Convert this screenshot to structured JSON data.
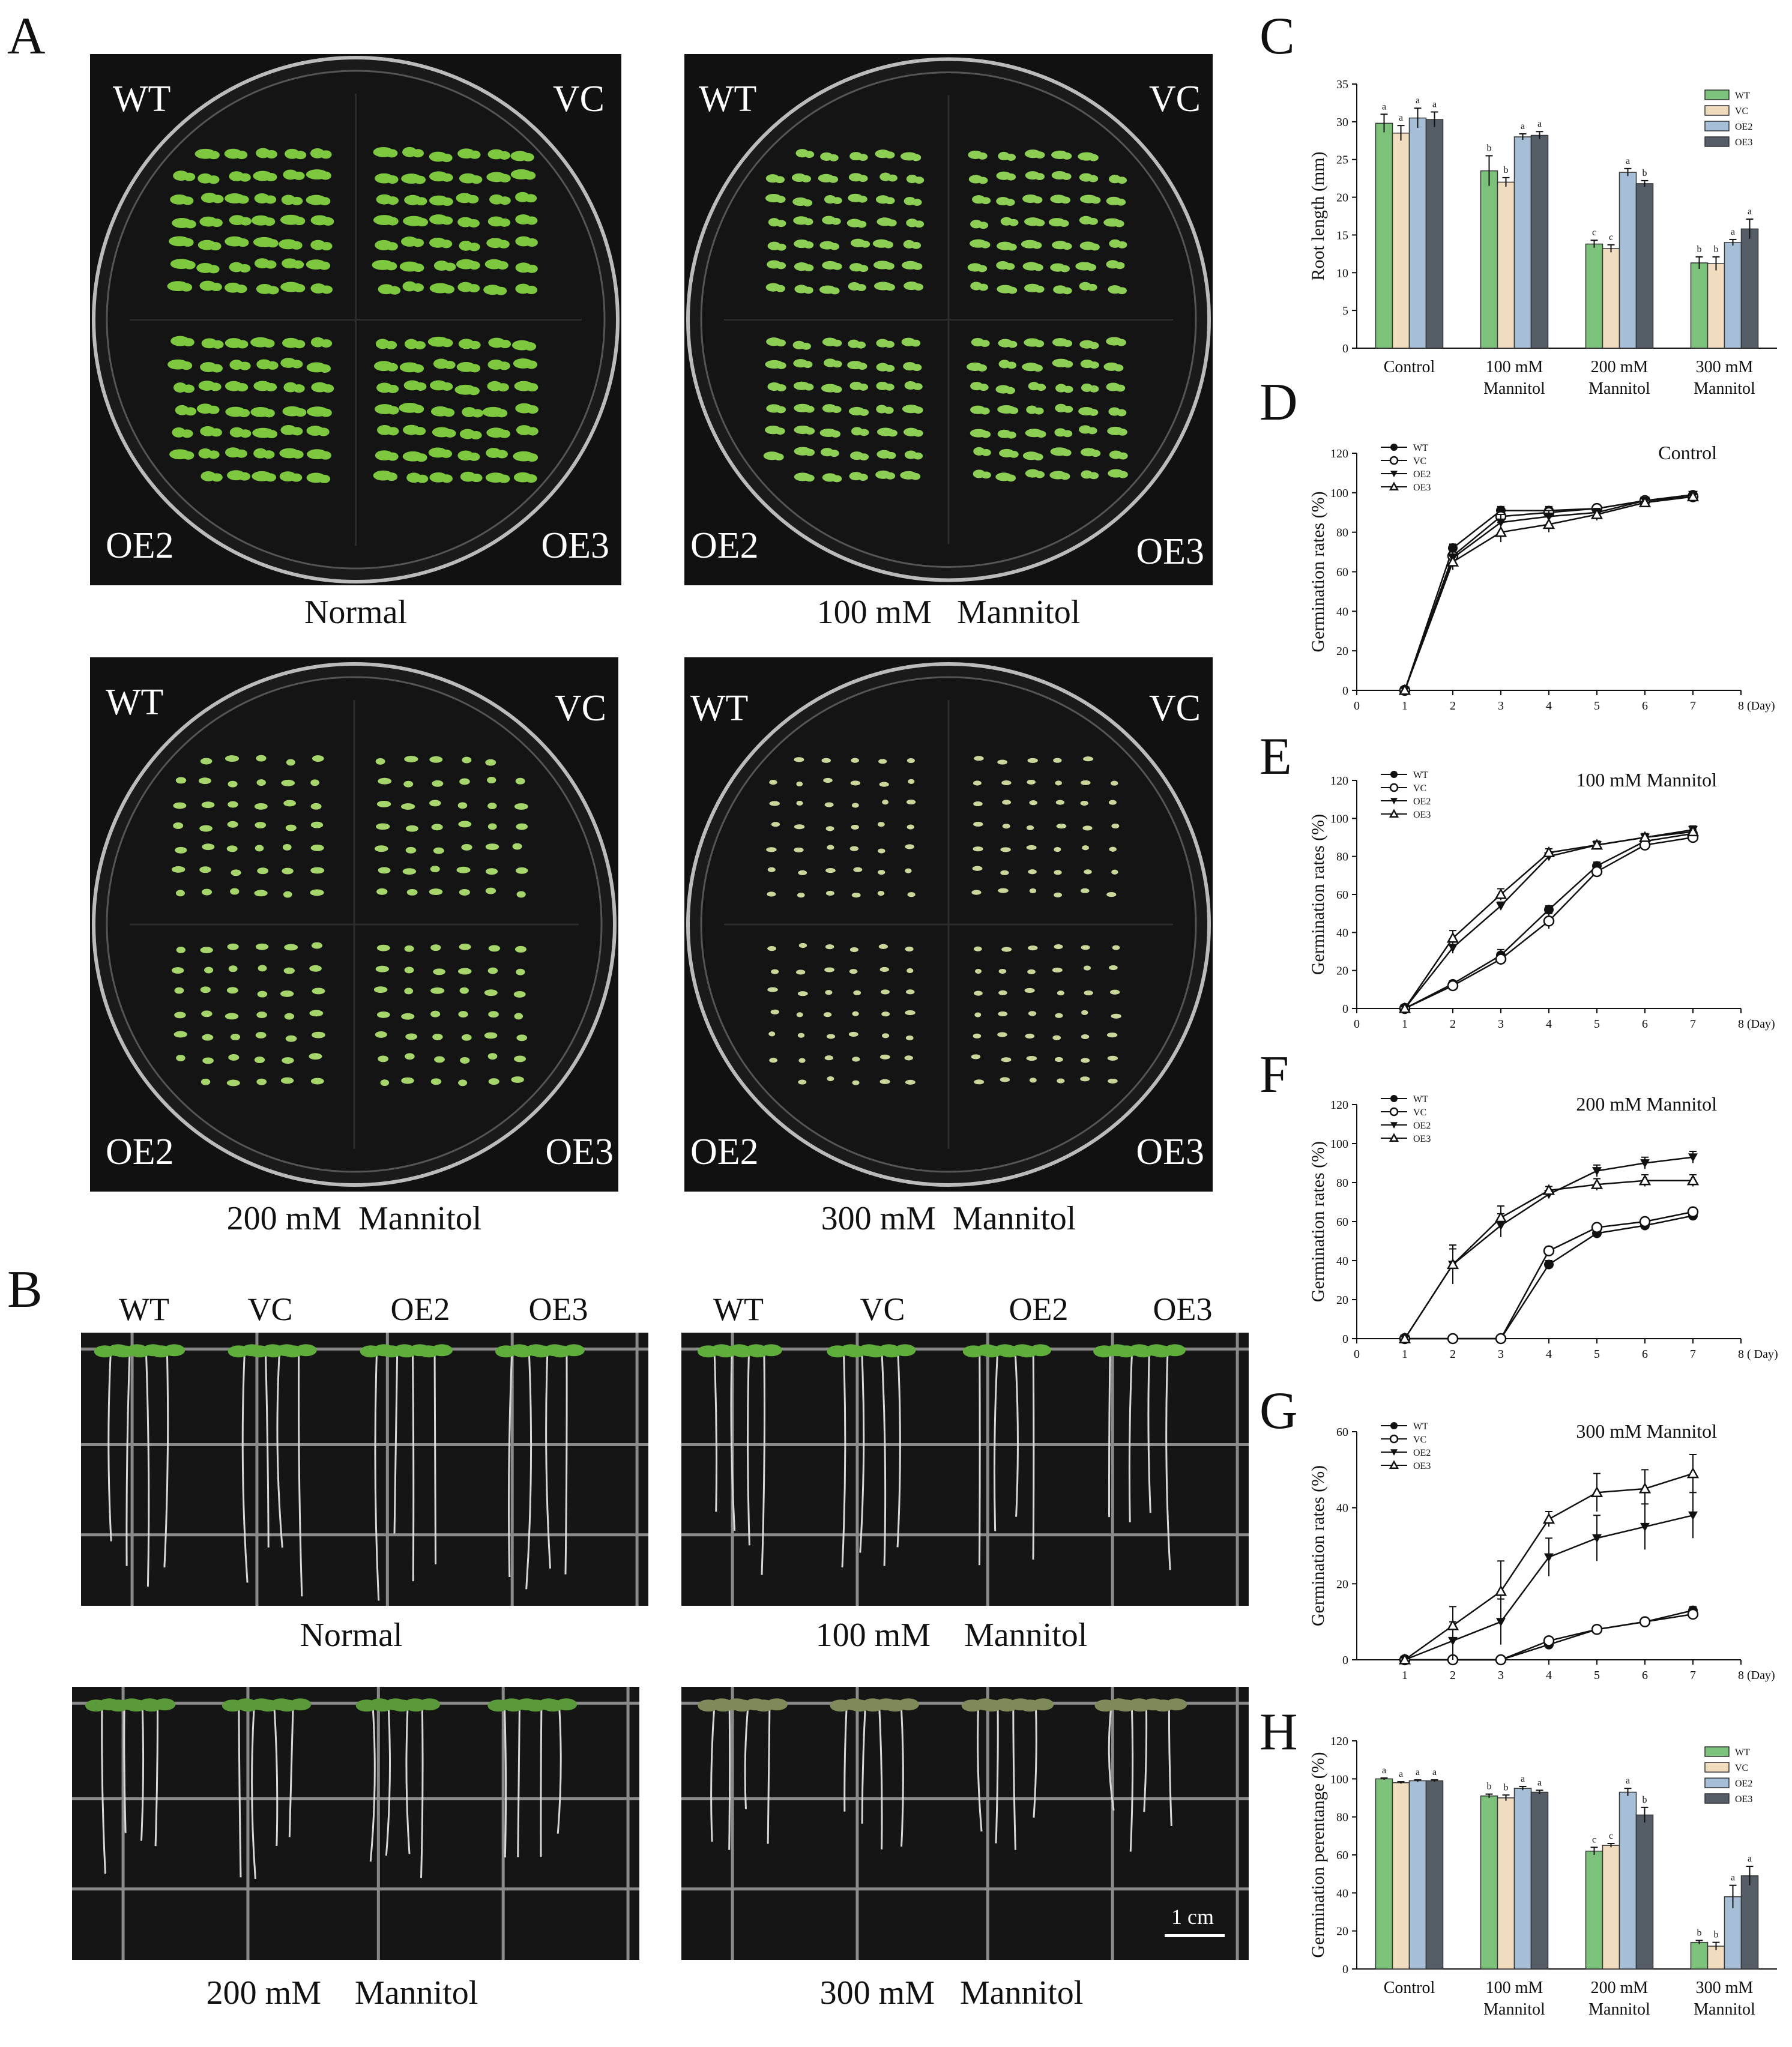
{
  "panel_letters": {
    "A": "A",
    "B": "B",
    "C": "C",
    "D": "D",
    "E": "E",
    "F": "F",
    "G": "G",
    "H": "H"
  },
  "genotypes": [
    "WT",
    "VC",
    "OE2",
    "OE3"
  ],
  "panel_a": {
    "plates": [
      {
        "caption": "Normal",
        "tl": "WT",
        "tr": "VC",
        "bl": "OE2",
        "br": "OE3",
        "seedling_density": 1.0,
        "green": "#7ec840"
      },
      {
        "caption": "100 mM   Mannitol",
        "tl": "WT",
        "tr": "VC",
        "bl": "OE2",
        "br": "OE3",
        "seedling_density": 0.75,
        "green": "#8dcf55"
      },
      {
        "caption": "200 mM  Mannitol",
        "tl": "WT",
        "tr": "VC",
        "bl": "OE2",
        "br": "OE3",
        "seedling_density": 0.45,
        "green": "#a6d66b"
      },
      {
        "caption": "300 mM  Mannitol",
        "tl": "WT",
        "tr": "VC",
        "bl": "OE2",
        "br": "OE3",
        "seedling_density": 0.2,
        "green": "#c9d89a"
      }
    ]
  },
  "panel_b": {
    "photos": [
      {
        "caption": "Normal",
        "labels": [
          "WT",
          "VC",
          "OE2",
          "OE3"
        ],
        "leaf_color": "#5fae3c"
      },
      {
        "caption": "100 mM    Mannitol",
        "labels": [
          "WT",
          "VC",
          "OE2",
          "OE3"
        ],
        "leaf_color": "#5fae3c"
      },
      {
        "caption": "200 mM    Mannitol",
        "labels": [],
        "leaf_color": "#5b9a3a"
      },
      {
        "caption": "300 mM   Mannitol",
        "labels": [],
        "leaf_color": "#7f8a5a",
        "scale_bar": "1 cm"
      }
    ]
  },
  "chart_data": [
    {
      "panel": "C",
      "type": "bar",
      "ylabel": "Root length (mm)",
      "ylim": [
        0,
        35
      ],
      "yticks": [
        0,
        5,
        10,
        15,
        20,
        25,
        30,
        35
      ],
      "categories": [
        "Control",
        "100 mM|Mannitol",
        "200 mM|Mannitol",
        "300 mM|Mannitol"
      ],
      "series": [
        {
          "name": "WT",
          "color": "#7dc27a",
          "values": [
            29.8,
            23.5,
            13.8,
            11.3
          ],
          "err": [
            1.2,
            2.0,
            0.5,
            0.8
          ],
          "letters": [
            "a",
            "b",
            "c",
            "b"
          ]
        },
        {
          "name": "VC",
          "color": "#f2dcc0",
          "values": [
            28.5,
            22.0,
            13.2,
            11.2
          ],
          "err": [
            1.0,
            0.6,
            0.5,
            0.9
          ],
          "letters": [
            "a",
            "b",
            "c",
            "b"
          ]
        },
        {
          "name": "OE2",
          "color": "#a7bfd6",
          "values": [
            30.5,
            28.0,
            23.3,
            14.0
          ],
          "err": [
            1.3,
            0.4,
            0.5,
            0.4
          ],
          "letters": [
            "a",
            "a",
            "a",
            "a"
          ]
        },
        {
          "name": "OE3",
          "color": "#555d66",
          "values": [
            30.3,
            28.2,
            21.8,
            15.8
          ],
          "err": [
            1.0,
            0.5,
            0.4,
            1.3
          ],
          "letters": [
            "a",
            "a",
            "b",
            "a"
          ]
        }
      ],
      "legend": "top-right"
    },
    {
      "panel": "D",
      "type": "line",
      "title": "Control",
      "ylabel": "Germination rates (%)",
      "xunit": "(Day)",
      "ylim": [
        0,
        120
      ],
      "yticks": [
        0,
        20,
        40,
        60,
        80,
        100,
        120
      ],
      "xlim": [
        0,
        8
      ],
      "xticks": [
        0,
        1,
        2,
        3,
        4,
        5,
        6,
        7,
        8
      ],
      "x": [
        1,
        2,
        3,
        4,
        5,
        6,
        7
      ],
      "series": [
        {
          "name": "WT",
          "marker": "filled-circle",
          "values": [
            0,
            72,
            91,
            91,
            92,
            96,
            99
          ],
          "err": [
            0,
            2,
            2,
            2,
            2,
            1,
            1
          ]
        },
        {
          "name": "VC",
          "marker": "open-circle",
          "values": [
            0,
            68,
            88,
            90,
            92,
            96,
            98
          ],
          "err": [
            0,
            3,
            3,
            2,
            2,
            1,
            1
          ]
        },
        {
          "name": "OE2",
          "marker": "filled-triangle",
          "values": [
            0,
            67,
            85,
            88,
            90,
            96,
            99
          ],
          "err": [
            0,
            3,
            4,
            3,
            2,
            1,
            1
          ]
        },
        {
          "name": "OE3",
          "marker": "open-triangle",
          "values": [
            0,
            65,
            80,
            84,
            89,
            95,
            98
          ],
          "err": [
            0,
            4,
            5,
            4,
            3,
            2,
            1
          ]
        }
      ],
      "legend": "top-left"
    },
    {
      "panel": "E",
      "type": "line",
      "title": "100 mM Mannitol",
      "ylabel": "Germination rates (%)",
      "xunit": "(Day)",
      "ylim": [
        0,
        120
      ],
      "yticks": [
        0,
        20,
        40,
        60,
        80,
        100,
        120
      ],
      "xlim": [
        0,
        8
      ],
      "xticks": [
        0,
        1,
        2,
        3,
        4,
        5,
        6,
        7,
        8
      ],
      "x": [
        1,
        2,
        3,
        4,
        5,
        6,
        7
      ],
      "series": [
        {
          "name": "WT",
          "marker": "filled-circle",
          "values": [
            0,
            13,
            28,
            52,
            75,
            88,
            92
          ],
          "err": [
            0,
            1,
            3,
            2,
            2,
            2,
            2
          ]
        },
        {
          "name": "VC",
          "marker": "open-circle",
          "values": [
            0,
            12,
            26,
            46,
            72,
            86,
            90
          ],
          "err": [
            0,
            1,
            3,
            4,
            2,
            2,
            2
          ]
        },
        {
          "name": "OE2",
          "marker": "filled-triangle",
          "values": [
            0,
            32,
            54,
            80,
            86,
            90,
            94
          ],
          "err": [
            0,
            3,
            2,
            2,
            2,
            2,
            2
          ]
        },
        {
          "name": "OE3",
          "marker": "open-triangle",
          "values": [
            0,
            37,
            60,
            82,
            86,
            90,
            93
          ],
          "err": [
            0,
            4,
            3,
            2,
            2,
            2,
            2
          ]
        }
      ],
      "legend": "top-left"
    },
    {
      "panel": "F",
      "type": "line",
      "title": "200 mM Mannitol",
      "ylabel": "Germination rates (%)",
      "xunit": "(   Day)",
      "ylim": [
        0,
        120
      ],
      "yticks": [
        0,
        20,
        40,
        60,
        80,
        100,
        120
      ],
      "xlim": [
        0,
        8
      ],
      "xticks": [
        0,
        1,
        2,
        3,
        4,
        5,
        6,
        7,
        8
      ],
      "x": [
        1,
        2,
        3,
        4,
        5,
        6,
        7
      ],
      "series": [
        {
          "name": "WT",
          "marker": "filled-circle",
          "values": [
            0,
            0,
            0,
            38,
            54,
            58,
            63
          ],
          "err": [
            0,
            0,
            0,
            2,
            2,
            2,
            2
          ]
        },
        {
          "name": "VC",
          "marker": "open-circle",
          "values": [
            0,
            0,
            0,
            45,
            57,
            60,
            65
          ],
          "err": [
            0,
            0,
            0,
            2,
            2,
            2,
            2
          ]
        },
        {
          "name": "OE2",
          "marker": "filled-triangle",
          "values": [
            0,
            38,
            58,
            74,
            86,
            90,
            93
          ],
          "err": [
            0,
            8,
            6,
            2,
            3,
            3,
            3
          ]
        },
        {
          "name": "OE3",
          "marker": "open-triangle",
          "values": [
            0,
            38,
            62,
            76,
            79,
            81,
            81
          ],
          "err": [
            0,
            10,
            6,
            2,
            3,
            3,
            3
          ]
        }
      ],
      "legend": "top-left"
    },
    {
      "panel": "G",
      "type": "line",
      "title": "300 mM Mannitol",
      "ylabel": "Germination rates (%)",
      "xunit": "(Day)",
      "ylim": [
        0,
        60
      ],
      "yticks": [
        0,
        20,
        40,
        60
      ],
      "xlim": [
        0,
        8
      ],
      "xticks": [
        1,
        2,
        3,
        4,
        5,
        6,
        7,
        8
      ],
      "x": [
        1,
        2,
        3,
        4,
        5,
        6,
        7
      ],
      "series": [
        {
          "name": "WT",
          "marker": "filled-circle",
          "values": [
            0,
            0,
            0,
            4,
            8,
            10,
            13
          ],
          "err": [
            0,
            0,
            0,
            1,
            1,
            1,
            1
          ]
        },
        {
          "name": "VC",
          "marker": "open-circle",
          "values": [
            0,
            0,
            0,
            5,
            8,
            10,
            12
          ],
          "err": [
            0,
            0,
            0,
            1,
            1,
            1,
            1
          ]
        },
        {
          "name": "OE2",
          "marker": "filled-triangle",
          "values": [
            0,
            5,
            10,
            27,
            32,
            35,
            38
          ],
          "err": [
            0,
            5,
            6,
            5,
            6,
            6,
            6
          ]
        },
        {
          "name": "OE3",
          "marker": "open-triangle",
          "values": [
            0,
            9,
            18,
            37,
            44,
            45,
            49
          ],
          "err": [
            0,
            5,
            8,
            2,
            5,
            5,
            5
          ]
        }
      ],
      "legend": "top-left"
    },
    {
      "panel": "H",
      "type": "bar",
      "ylabel": "Germination perentange (%)",
      "ylim": [
        0,
        120
      ],
      "yticks": [
        0,
        20,
        40,
        60,
        80,
        100,
        120
      ],
      "categories": [
        "Control",
        "100 mM|Mannitol",
        "200 mM|Mannitol",
        "300 mM|Mannitol"
      ],
      "series": [
        {
          "name": "WT",
          "color": "#7dc27a",
          "values": [
            100,
            91,
            62,
            14
          ],
          "err": [
            0.5,
            1,
            2,
            1
          ],
          "letters": [
            "a",
            "b",
            "c",
            "b"
          ]
        },
        {
          "name": "VC",
          "color": "#f2dcc0",
          "values": [
            98,
            90,
            65,
            12
          ],
          "err": [
            0.5,
            1.5,
            1,
            2
          ],
          "letters": [
            "a",
            "b",
            "c",
            "b"
          ]
        },
        {
          "name": "OE2",
          "color": "#a7bfd6",
          "values": [
            99,
            95,
            93,
            38
          ],
          "err": [
            0.5,
            1,
            2,
            6
          ],
          "letters": [
            "a",
            "a",
            "a",
            "a"
          ]
        },
        {
          "name": "OE3",
          "color": "#555d66",
          "values": [
            99,
            93,
            81,
            49
          ],
          "err": [
            0.5,
            1,
            4,
            5
          ],
          "letters": [
            "a",
            "a",
            "b",
            "a"
          ]
        }
      ],
      "legend": "top-right"
    }
  ]
}
